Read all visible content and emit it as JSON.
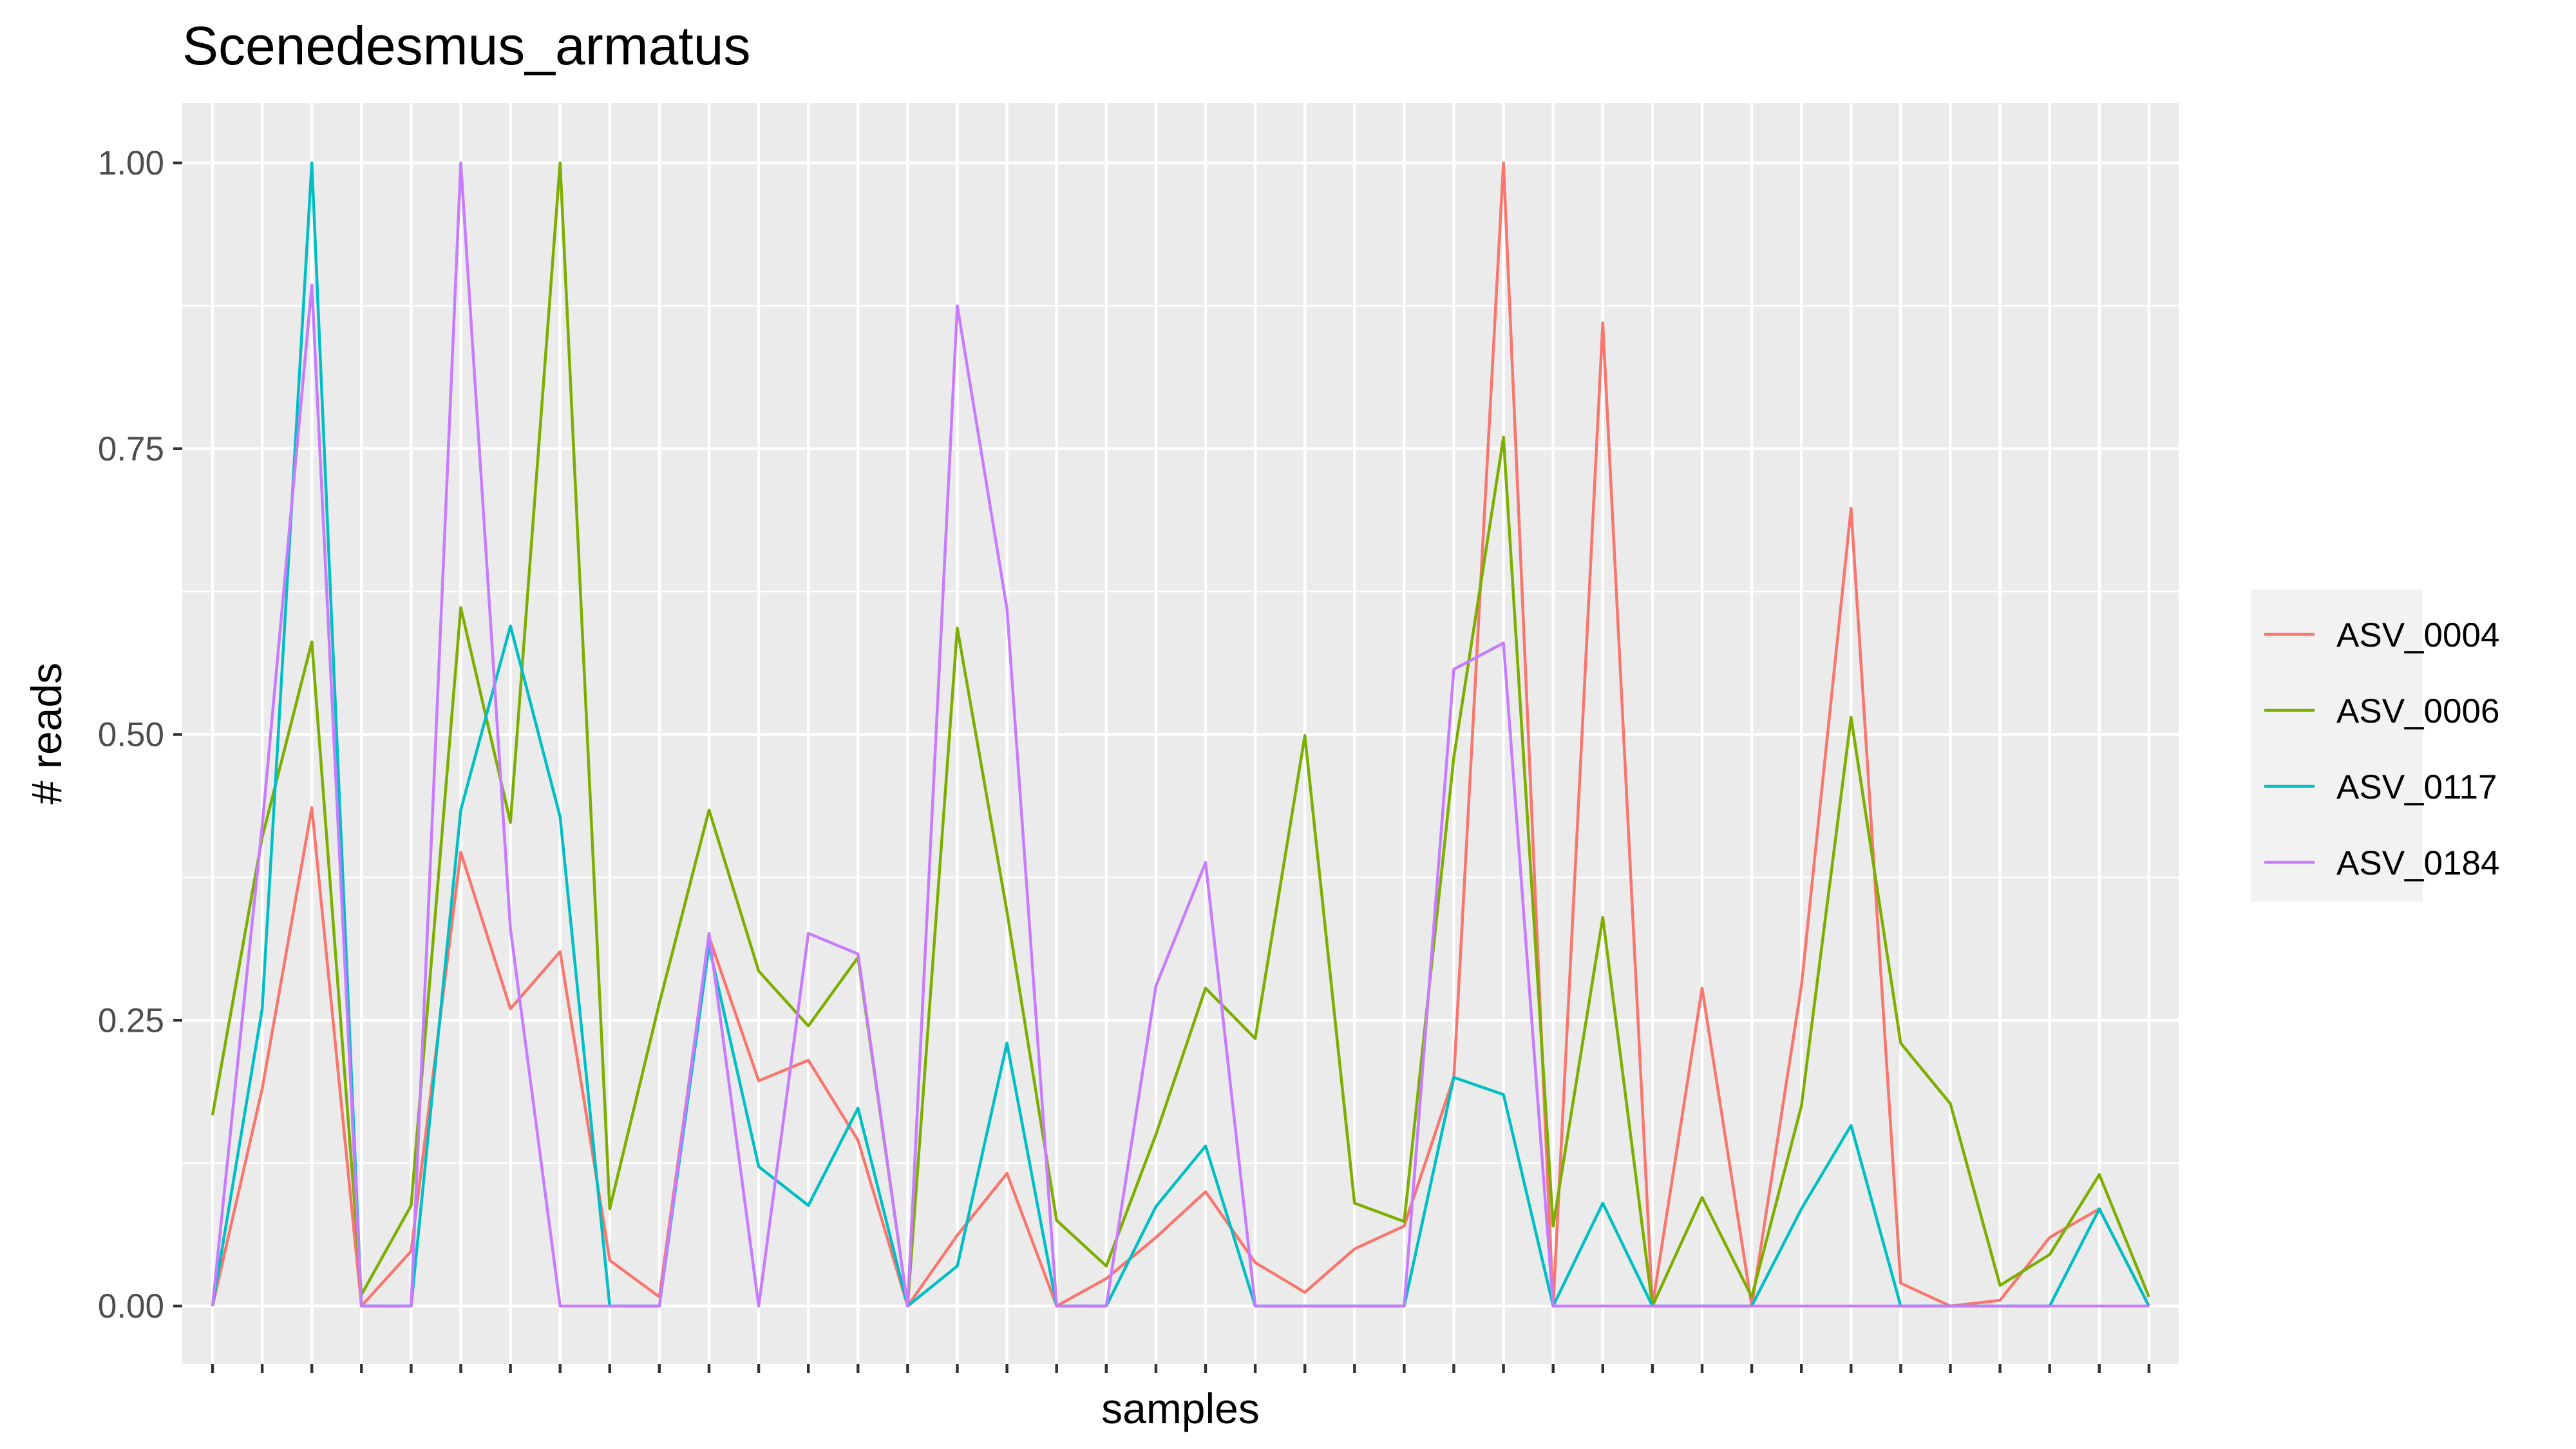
{
  "chart_data": {
    "type": "line",
    "title": "Scenedesmus_armatus",
    "xlabel": "samples",
    "ylabel": "# reads",
    "ylim": [
      0,
      1
    ],
    "yticks": [
      0,
      0.25,
      0.5,
      0.75,
      1
    ],
    "ytick_labels": [
      "0.00",
      "0.25",
      "0.50",
      "0.75",
      "1.00"
    ],
    "n_samples": 40,
    "grid": true,
    "legend_position": "right",
    "series": [
      {
        "name": "ASV_0004",
        "color": "#F8766D",
        "values": [
          0,
          0.19,
          0.436,
          0,
          0.048,
          0.397,
          0.26,
          0.31,
          0.04,
          0.008,
          0.323,
          0.197,
          0.215,
          0.145,
          0,
          0.062,
          0.116,
          0,
          0.024,
          0.06,
          0.1,
          0.038,
          0.012,
          0.05,
          0.07,
          0.2,
          1.0,
          0,
          0.86,
          0,
          0.278,
          0,
          0.28,
          0.698,
          0.02,
          0,
          0.005,
          0.06,
          0.085,
          0
        ]
      },
      {
        "name": "ASV_0006",
        "color": "#7CAE00",
        "values": [
          0.167,
          0.41,
          0.581,
          0.01,
          0.088,
          0.611,
          0.423,
          1.0,
          0.085,
          0.265,
          0.434,
          0.293,
          0.245,
          0.305,
          0,
          0.593,
          0.345,
          0.075,
          0.035,
          0.15,
          0.278,
          0.234,
          0.499,
          0.09,
          0.074,
          0.48,
          0.76,
          0.07,
          0.34,
          0,
          0.095,
          0.008,
          0.175,
          0.515,
          0.23,
          0.177,
          0.018,
          0.045,
          0.115,
          0.008
        ]
      },
      {
        "name": "ASV_0117",
        "color": "#00BFC4",
        "values": [
          0,
          0.26,
          1.0,
          0,
          0,
          0.434,
          0.595,
          0.428,
          0,
          0,
          0.315,
          0.122,
          0.088,
          0.173,
          0,
          0.035,
          0.23,
          0,
          0,
          0.087,
          0.14,
          0,
          0,
          0,
          0,
          0.2,
          0.185,
          0,
          0.09,
          0,
          0,
          0,
          0.085,
          0.158,
          0,
          0,
          0,
          0,
          0.085,
          0
        ]
      },
      {
        "name": "ASV_0184",
        "color": "#C77CFF",
        "values": [
          0,
          0.42,
          0.893,
          0,
          0,
          1.0,
          0.33,
          0,
          0,
          0,
          0.326,
          0,
          0.326,
          0.308,
          0,
          0.875,
          0.61,
          0,
          0,
          0.28,
          0.388,
          0,
          0,
          0,
          0,
          0.557,
          0.58,
          0,
          0,
          0,
          0,
          0,
          0,
          0,
          0,
          0,
          0,
          0,
          0,
          0
        ]
      }
    ]
  }
}
